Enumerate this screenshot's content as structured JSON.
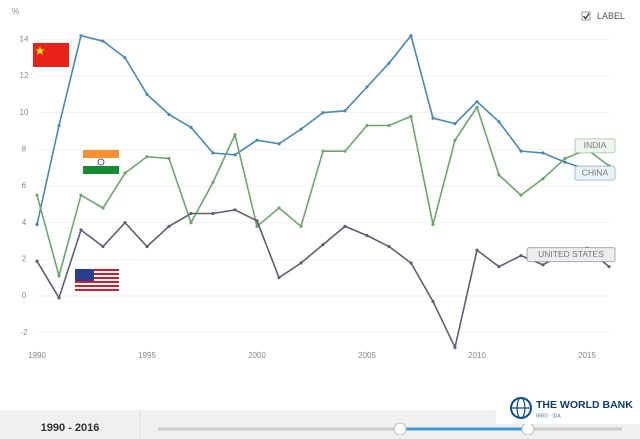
{
  "chart_data": {
    "type": "line",
    "y_label": "%",
    "toggle_label": "LABEL",
    "range_label": "1990 - 2016",
    "brand": "THE WORLD BANK",
    "brand_sub": "IBRD · IDA",
    "x": [
      1990,
      1991,
      1992,
      1993,
      1994,
      1995,
      1996,
      1997,
      1998,
      1999,
      2000,
      2001,
      2002,
      2003,
      2004,
      2005,
      2006,
      2007,
      2008,
      2009,
      2010,
      2011,
      2012,
      2013,
      2014,
      2015,
      2016
    ],
    "xlim": [
      1990,
      2016
    ],
    "xticks": [
      1990,
      1995,
      2000,
      2005,
      2010,
      2015
    ],
    "ylim": [
      -3,
      15
    ],
    "yticks": [
      -2,
      0,
      2,
      4,
      6,
      8,
      10,
      12,
      14
    ],
    "series": [
      {
        "name": "CHINA",
        "color": "#4a88b2",
        "values": [
          3.9,
          9.3,
          14.2,
          13.9,
          13.0,
          11.0,
          9.9,
          9.2,
          7.8,
          7.7,
          8.5,
          8.3,
          9.1,
          10.0,
          10.1,
          11.4,
          12.7,
          14.2,
          9.7,
          9.4,
          10.6,
          9.5,
          7.9,
          7.8,
          7.3,
          6.9,
          6.7
        ]
      },
      {
        "name": "INDIA",
        "color": "#6fa46f",
        "values": [
          5.5,
          1.1,
          5.5,
          4.8,
          6.7,
          7.6,
          7.5,
          4.0,
          6.2,
          8.8,
          3.8,
          4.8,
          3.8,
          7.9,
          7.9,
          9.3,
          9.3,
          9.8,
          3.9,
          8.5,
          10.3,
          6.6,
          5.5,
          6.4,
          7.5,
          8.0,
          7.1
        ]
      },
      {
        "name": "UNITED STATES",
        "color": "#5e6070",
        "values": [
          1.9,
          -0.1,
          3.6,
          2.7,
          4.0,
          2.7,
          3.8,
          4.5,
          4.5,
          4.7,
          4.1,
          1.0,
          1.8,
          2.8,
          3.8,
          3.3,
          2.7,
          1.8,
          -0.3,
          -2.8,
          2.5,
          1.6,
          2.2,
          1.7,
          2.4,
          2.6,
          1.6
        ]
      }
    ]
  }
}
